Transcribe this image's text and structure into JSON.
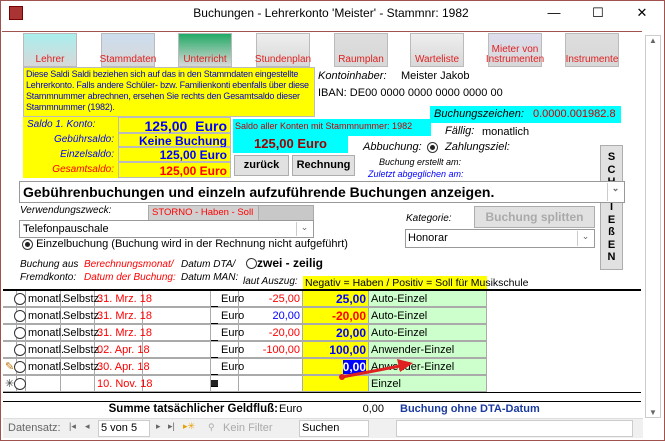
{
  "window": {
    "title": "Buchungen - Lehrerkonto 'Meister' - Stammnr: 1982",
    "minimize": "—",
    "maximize": "☐",
    "close": "✕"
  },
  "toolbar": [
    {
      "label": "Lehrer",
      "icon": "teacher-icon"
    },
    {
      "label": "Stammdaten",
      "icon": "house-icon"
    },
    {
      "label": "Unterricht",
      "icon": "funnel-icon"
    },
    {
      "label": "Stundenplan",
      "icon": "clock-icon"
    },
    {
      "label": "Raumplan",
      "icon": "floorplan-icon"
    },
    {
      "label": "Warteliste",
      "icon": "people-icon"
    },
    {
      "label": "Mieter von Instrumenten",
      "icon": "musician-icon"
    },
    {
      "label": "Instrumente",
      "icon": "violin-icon"
    }
  ],
  "info_text": "Diese Saldi Saldi beziehen sich auf das in den Stammdaten eingestellte Lehrerkonto. Falls andere Schüler- bzw. Familienkonti ebenfalls über diese Stammnummer abrechnen, ersehen Sie rechts den Gesamtsaldo dieser Stammnummer (1982).",
  "account": {
    "holder_label": "Kontoinhaber:",
    "holder": "Meister Jakob",
    "iban": "IBAN: DE00 0000 0000 0000 0000 00",
    "ref_label": "Buchungszeichen:",
    "ref": "0.0000.001982.8"
  },
  "saldi": [
    {
      "label": "Saldo 1. Konto:",
      "value": "125,00  Euro"
    },
    {
      "label": "Gebührsaldo:",
      "value": "Keine Buchung"
    },
    {
      "label": "Einzelsaldo:",
      "value": "125,00 Euro"
    },
    {
      "label": "Gesamtsaldo:",
      "value": "125,00 Euro"
    }
  ],
  "all_accounts": {
    "label": "Saldo aller Konten mit Stammnummer: 1982",
    "value": "125,00 Euro"
  },
  "buttons": {
    "back": "zurück",
    "invoice": "Rechnung",
    "close": "SCHLIEßEN",
    "split": "Buchung splitten"
  },
  "due": {
    "label": "Fällig:",
    "value": "monatlich",
    "debit_label": "Abbuchung:",
    "term_label": "Zahlungsziel:"
  },
  "created_label": "Buchung erstellt am:",
  "reconciled_label": "Zuletzt abgeglichen am:",
  "filter_select": "Gebührenbuchungen und einzeln aufzuführende Buchungen anzeigen.",
  "purpose": {
    "label": "Verwendungszweck:",
    "value": "Telefonpauschale",
    "storno": "STORNO - Haben - Soll"
  },
  "category": {
    "label": "Kategorie:",
    "value": "Honorar"
  },
  "single_booking": "Einzelbuchung (Buchung wird in der Rechnung nicht aufgeführt)",
  "headers": {
    "foreign": "Buchung aus Fremdkonto:",
    "month": "Berechnungsmonat/ Datum der Buchung:",
    "dta": "Datum DTA/ Datum MAN:",
    "twoline": "zwei - zeilig",
    "statement": "laut Auszug:",
    "note": "Negativ = Haben / Positiv = Soll für Musikschule"
  },
  "rows": [
    {
      "sel": "",
      "type": "monatl.",
      "who": "Selbstz.",
      "date": "31. Mrz. 18",
      "cur": "Euro",
      "amount": "-25,00",
      "amount_color": "#ff0000",
      "saldo": "25,00",
      "saldo_color": "#0000ff",
      "kind": "Auto-Einzel"
    },
    {
      "sel": "",
      "type": "monatl.",
      "who": "Selbstz.",
      "date": "31. Mrz. 18",
      "cur": "Euro",
      "amount": "20,00",
      "amount_color": "#0000ff",
      "saldo": "-20,00",
      "saldo_color": "#ff0000",
      "kind": "Auto-Einzel"
    },
    {
      "sel": "",
      "type": "monatl.",
      "who": "Selbstz.",
      "date": "31. Mrz. 18",
      "cur": "Euro",
      "amount": "-20,00",
      "amount_color": "#ff0000",
      "saldo": "20,00",
      "saldo_color": "#0000ff",
      "kind": "Auto-Einzel"
    },
    {
      "sel": "",
      "type": "monatl.",
      "who": "Selbstz.",
      "date": "02. Apr. 18",
      "cur": "Euro",
      "amount": "-100,00",
      "amount_color": "#ff0000",
      "saldo": "100,00",
      "saldo_color": "#0000ff",
      "kind": "Anwender-Einzel"
    },
    {
      "sel": "✎",
      "type": "monatl.",
      "who": "Selbstz.",
      "date": "30. Apr. 18",
      "cur": "Euro",
      "amount": "",
      "amount_color": "#000",
      "saldo": "0,00",
      "saldo_color": "#fff",
      "kind": "Anwender-Einzel"
    },
    {
      "sel": "✳",
      "type": "",
      "who": "",
      "date": "10. Nov. 18",
      "cur": "",
      "amount": "",
      "amount_color": "#000",
      "saldo": "",
      "saldo_color": "#000",
      "kind": "Einzel"
    }
  ],
  "sum": {
    "label": "Summe tatsächlicher Geldfluß:",
    "cur": "Euro",
    "value": "0,00",
    "note": "Buchung ohne DTA-Datum"
  },
  "nav": {
    "label": "Datensatz:",
    "record": "5 von 5",
    "filter": "Kein Filter",
    "search": "Suchen"
  }
}
